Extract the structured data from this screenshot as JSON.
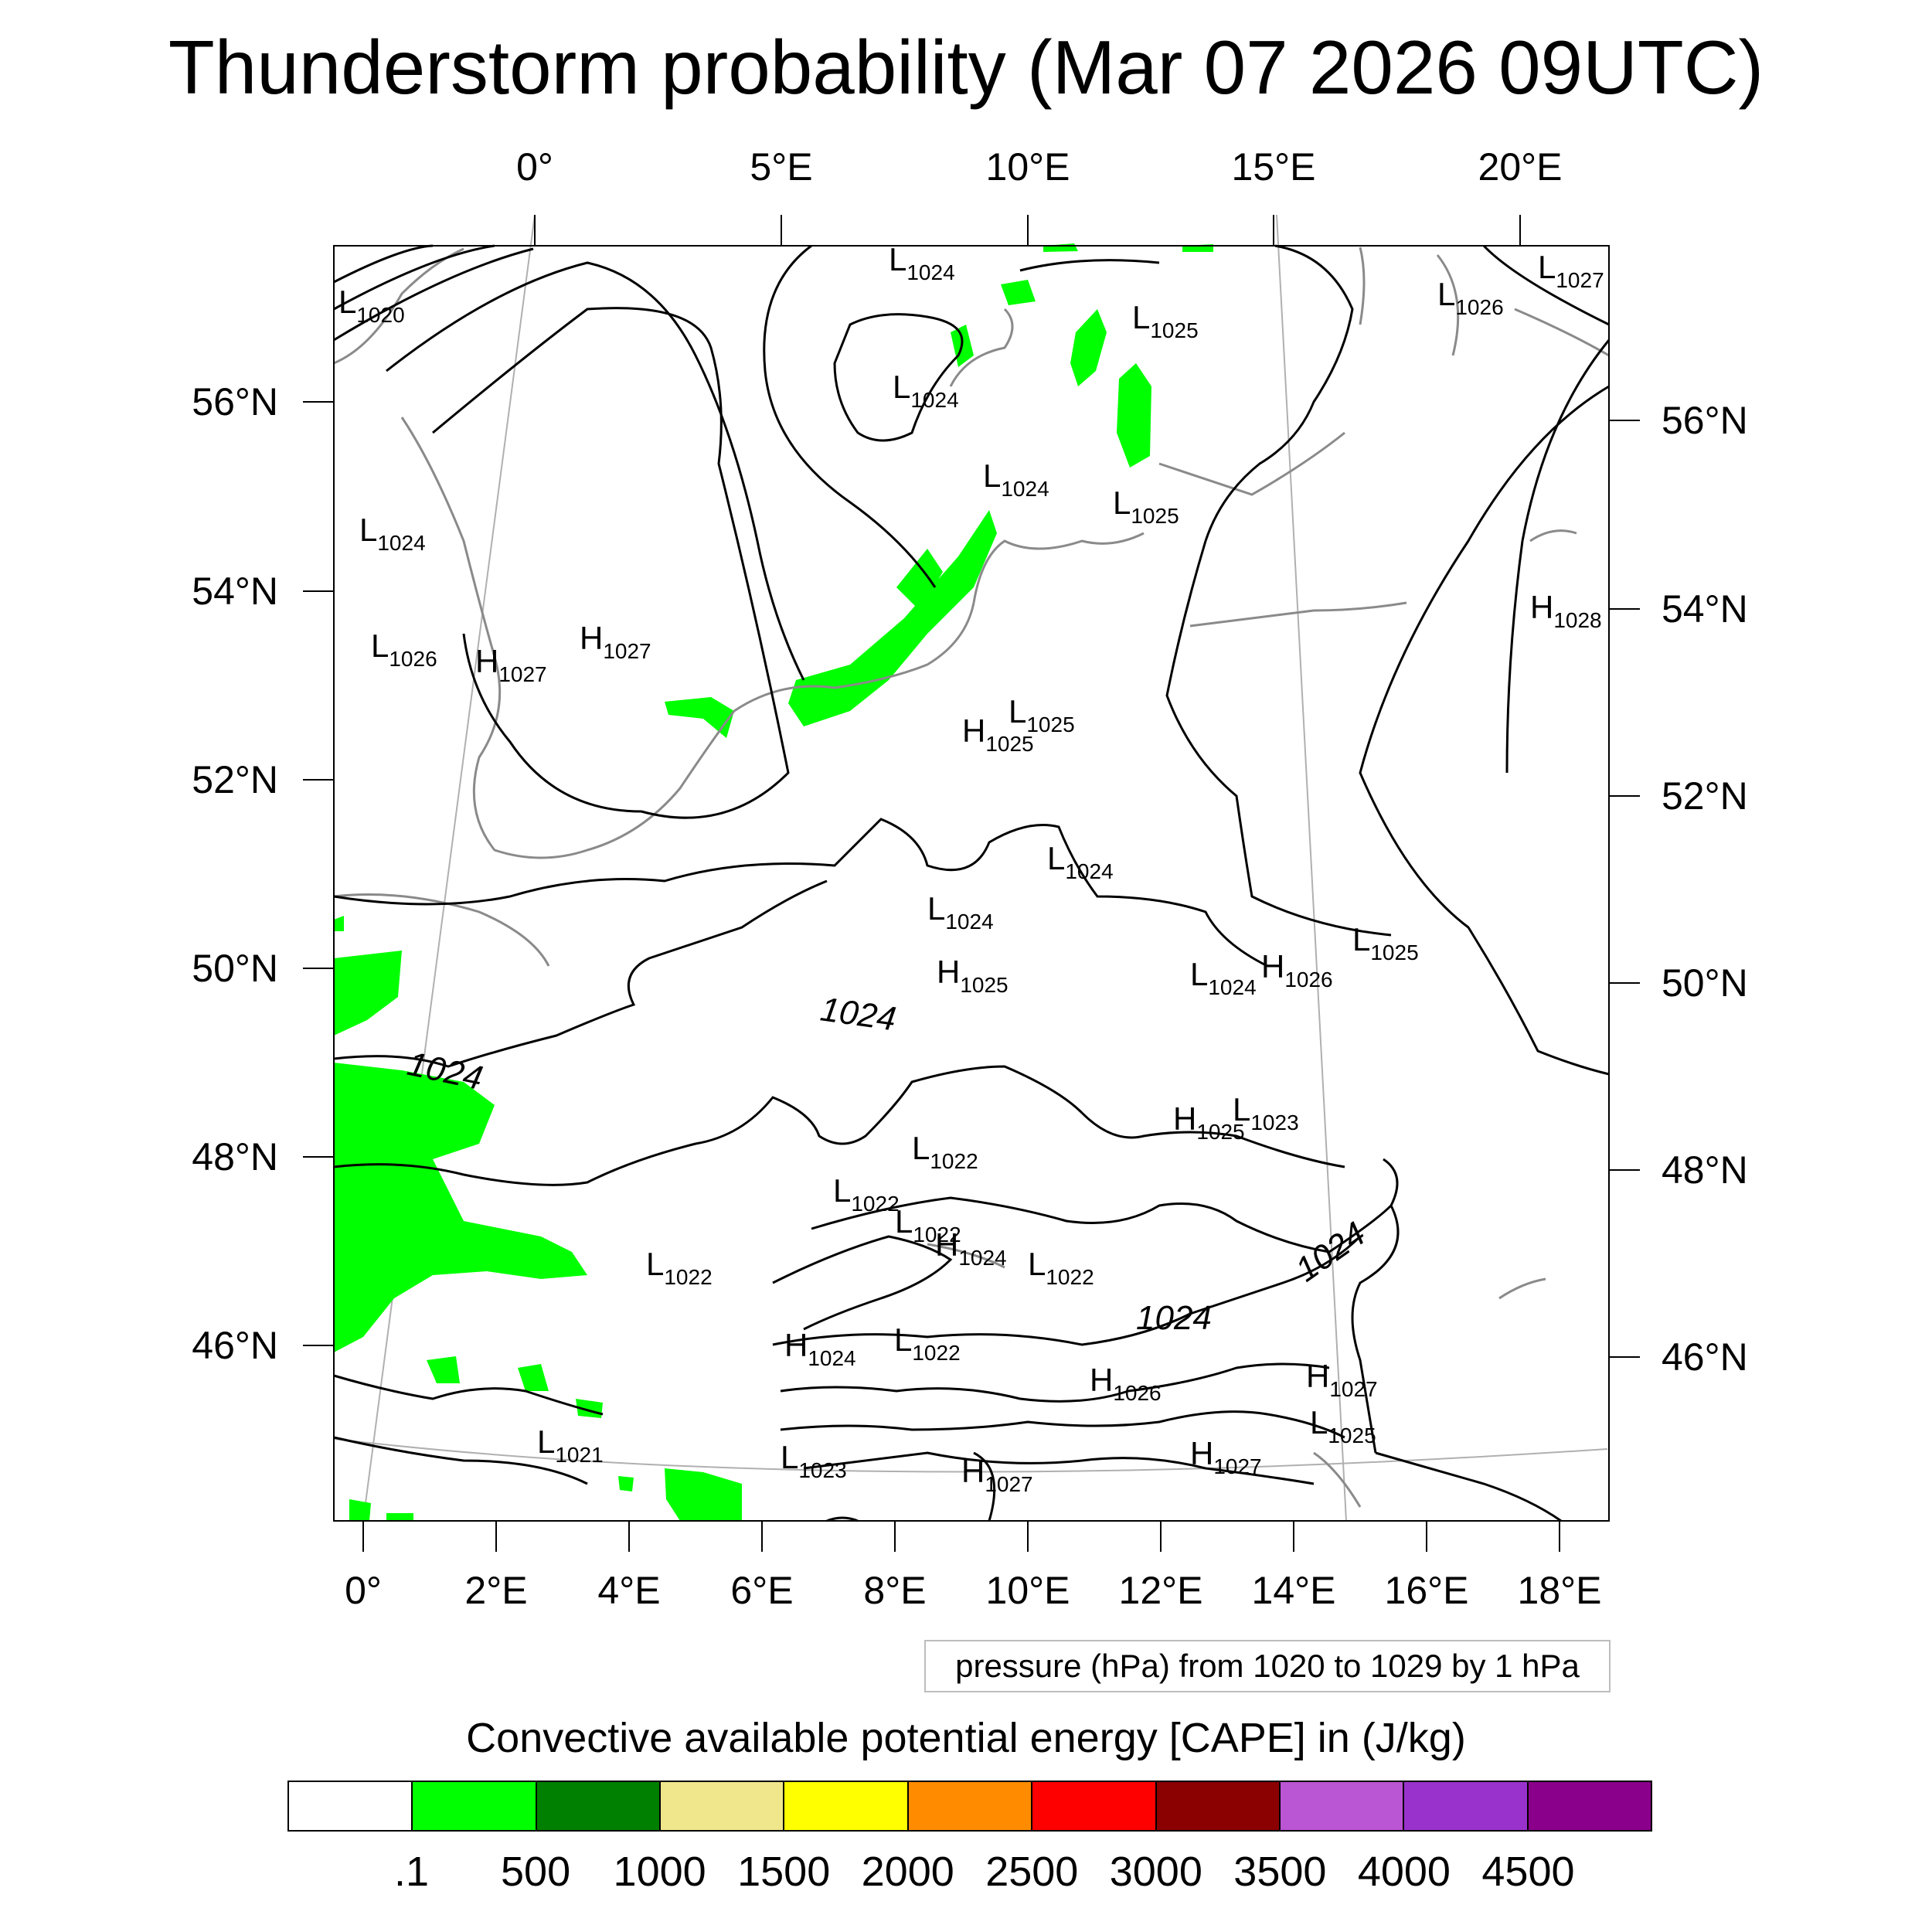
{
  "title": "Thunderstorm probability (Mar 07 2026 09UTC)",
  "top_lon_labels": [
    "0°",
    "5°E",
    "10°E",
    "15°E",
    "20°E"
  ],
  "bottom_lon_labels": [
    "0°",
    "2°E",
    "4°E",
    "6°E",
    "8°E",
    "10°E",
    "12°E",
    "14°E",
    "16°E",
    "18°E"
  ],
  "left_lat_labels": [
    "56°N",
    "54°N",
    "52°N",
    "50°N",
    "48°N",
    "46°N"
  ],
  "right_lat_labels": [
    "56°N",
    "54°N",
    "52°N",
    "50°N",
    "48°N",
    "46°N"
  ],
  "contour_info": "pressure (hPa) from 1020 to 1029 by 1 hPa",
  "colorbar": {
    "title": "Convective available potential energy [CAPE] in (J/kg)",
    "colors": [
      "#ffffff",
      "#00ff00",
      "#008000",
      "#f0e68c",
      "#ffff00",
      "#ff8c00",
      "#ff0000",
      "#8b0000",
      "#ba55d3",
      "#9932cc",
      "#8b008b"
    ],
    "labels": [
      ".1",
      "500",
      "1000",
      "1500",
      "2000",
      "2500",
      "3000",
      "3500",
      "4000",
      "4500"
    ]
  },
  "pressure_labels": [
    {
      "kind": "L",
      "value": "1020"
    },
    {
      "kind": "L",
      "value": "1024"
    },
    {
      "kind": "L",
      "value": "1025"
    },
    {
      "kind": "L",
      "value": "1026"
    },
    {
      "kind": "L",
      "value": "1027"
    },
    {
      "kind": "L",
      "value": "1024"
    },
    {
      "kind": "L",
      "value": "1024"
    },
    {
      "kind": "L",
      "value": "1025"
    },
    {
      "kind": "L",
      "value": "1024"
    },
    {
      "kind": "L",
      "value": "1026"
    },
    {
      "kind": "H",
      "value": "1027"
    },
    {
      "kind": "H",
      "value": "1027"
    },
    {
      "kind": "H",
      "value": "1028"
    },
    {
      "kind": "L",
      "value": "1025"
    },
    {
      "kind": "H",
      "value": "1025"
    },
    {
      "kind": "L",
      "value": "1024"
    },
    {
      "kind": "L",
      "value": "1024"
    },
    {
      "kind": "H",
      "value": "1025"
    },
    {
      "kind": "L",
      "value": "1024"
    },
    {
      "kind": "H",
      "value": "1026"
    },
    {
      "kind": "L",
      "value": "1025"
    },
    {
      "kind": "H",
      "value": "1025"
    },
    {
      "kind": "L",
      "value": "1023"
    },
    {
      "kind": "L",
      "value": "1022"
    },
    {
      "kind": "L",
      "value": "1022"
    },
    {
      "kind": "L",
      "value": "1022"
    },
    {
      "kind": "H",
      "value": "1024"
    },
    {
      "kind": "L",
      "value": "1022"
    },
    {
      "kind": "L",
      "value": "1022"
    },
    {
      "kind": "H",
      "value": "1024"
    },
    {
      "kind": "L",
      "value": "1022"
    },
    {
      "kind": "H",
      "value": "1026"
    },
    {
      "kind": "H",
      "value": "1027"
    },
    {
      "kind": "L",
      "value": "1025"
    },
    {
      "kind": "L",
      "value": "1021"
    },
    {
      "kind": "L",
      "value": "1023"
    },
    {
      "kind": "H",
      "value": "1027"
    },
    {
      "kind": "H",
      "value": "1027"
    }
  ],
  "isobar_labels": [
    "1024",
    "1024",
    "1024",
    "1024"
  ]
}
